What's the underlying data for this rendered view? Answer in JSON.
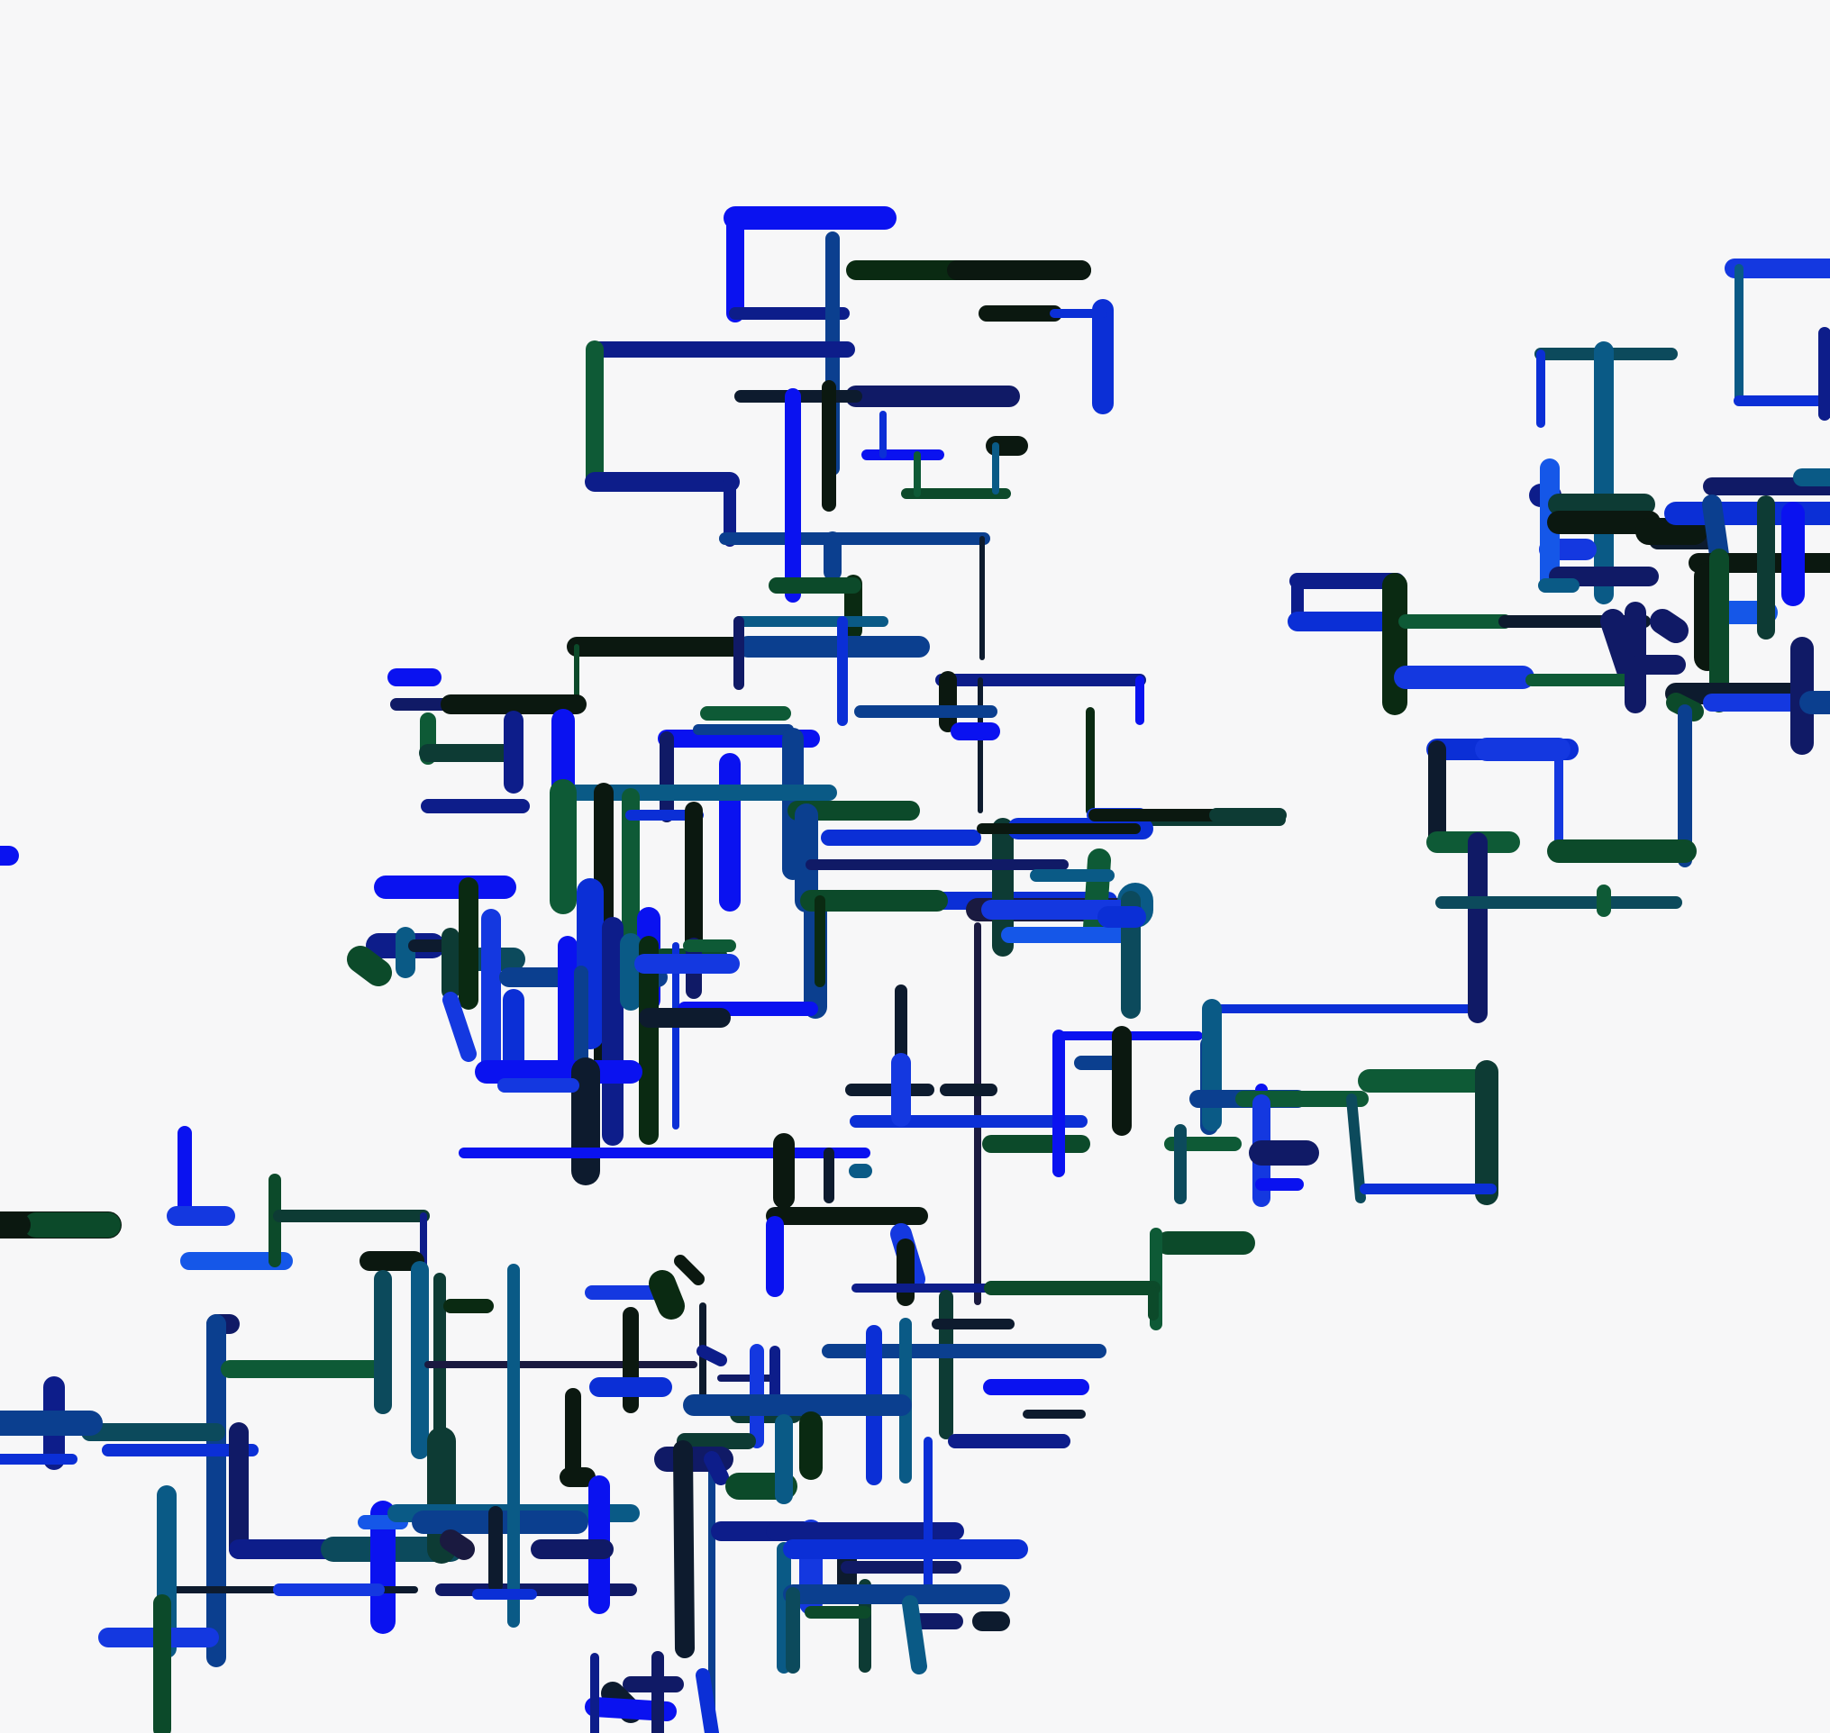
{
  "palette": {
    "background": "#f7f7f8",
    "line_colors": [
      "#0a12f0",
      "#0b2fd6",
      "#1438e0",
      "#0d1d8a",
      "#101a66",
      "#0b3f8f",
      "#0a5a86",
      "#0c4a5c",
      "#0d3b34",
      "#0c4a2a",
      "#0e5a36",
      "#0a2a12",
      "#0b1810",
      "#0d1b2e",
      "#1a1a40",
      "#1557e8"
    ]
  }
}
